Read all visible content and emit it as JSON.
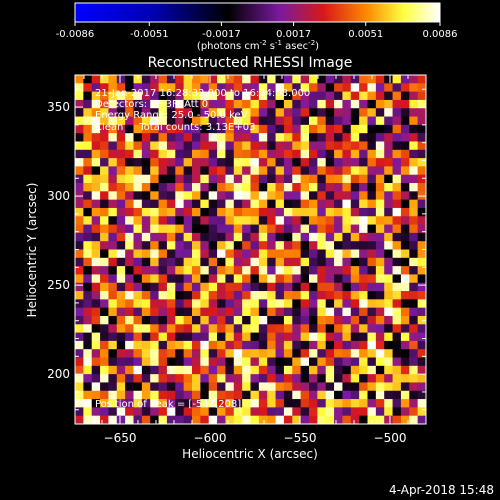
{
  "colorbar": {
    "ticks": [
      "-0.0086",
      "-0.0051",
      "-0.0017",
      "0.0017",
      "0.0051",
      "0.0086"
    ],
    "range": [
      -0.0086,
      0.0086
    ],
    "units": {
      "prefix": "(photons cm",
      "exp1": "-2",
      "mid1": " s",
      "exp2": "-1",
      "mid2": " asec",
      "exp3": "-2",
      "suffix": ")"
    },
    "colors": [
      "#0000ff",
      "#000000",
      "#7a1aa0",
      "#d81818",
      "#ff8a00",
      "#ffff40",
      "#ffffff"
    ]
  },
  "chart_data": {
    "type": "heatmap",
    "title": "Reconstructed RHESSI Image",
    "xlabel": "Heliocentric X (arcsec)",
    "ylabel": "Heliocentric Y (arcsec)",
    "xlim": [
      -675,
      -480
    ],
    "ylim": [
      172,
      368
    ],
    "xticks": [
      -650,
      -600,
      -550,
      -500
    ],
    "yticks": [
      200,
      250,
      300,
      350
    ],
    "xtick_labels": [
      "−650",
      "−600",
      "−550",
      "−500"
    ],
    "ytick_labels": [
      "200",
      "250",
      "300",
      "350"
    ],
    "grid_size": [
      42,
      42
    ],
    "annotations": [
      "21-Jan-2017 16:28:32.000 to 16:34:08.000",
      "Detectors: 1F 3F, Att 0",
      "Energy Range: 25.0 - 50.0 keV",
      "Clean     Total counts: 3.13E+03"
    ],
    "peak_label": "Position of Peak = [-547,208]",
    "peak_position": [
      -547,
      208
    ]
  },
  "footer": {
    "timestamp": "4-Apr-2018 15:48"
  }
}
